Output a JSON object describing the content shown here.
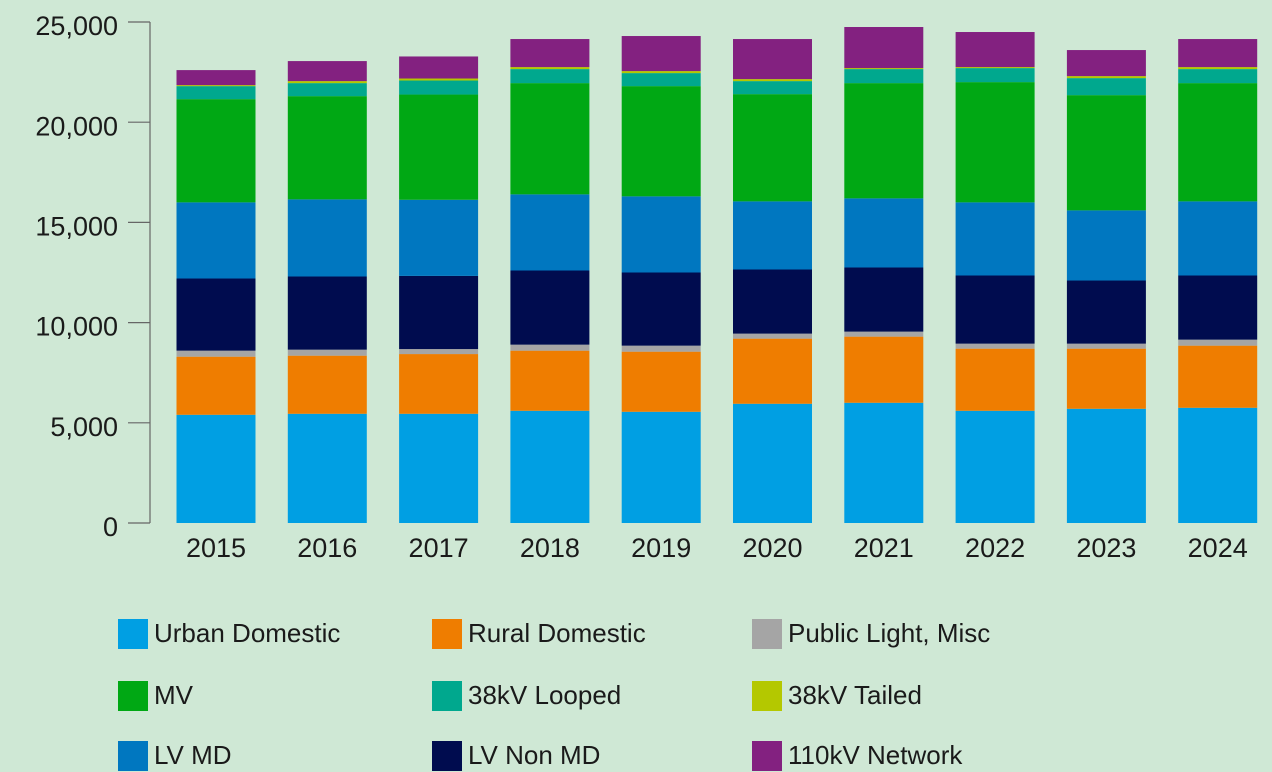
{
  "chart_data": {
    "type": "stacked_bar",
    "categories": [
      "2015",
      "2016",
      "2017",
      "2018",
      "2019",
      "2020",
      "2021",
      "2022",
      "2023",
      "2024"
    ],
    "series": [
      {
        "name": "Urban Domestic",
        "color": "#009fe3",
        "values": [
          5400,
          5450,
          5450,
          5600,
          5550,
          5950,
          6000,
          5600,
          5700,
          5750
        ]
      },
      {
        "name": "Rural Domestic",
        "color": "#ef7d00",
        "values": [
          2900,
          2900,
          2980,
          3000,
          3000,
          3250,
          3300,
          3100,
          3000,
          3100
        ]
      },
      {
        "name": "Public Light, Misc",
        "color": "#a5a5a5",
        "values": [
          300,
          300,
          250,
          300,
          300,
          250,
          250,
          250,
          250,
          300
        ]
      },
      {
        "name": "LV Non MD",
        "color": "#000c4f",
        "values": [
          3600,
          3650,
          3650,
          3700,
          3650,
          3200,
          3200,
          3400,
          3150,
          3200
        ]
      },
      {
        "name": "LV MD",
        "color": "#0077c0",
        "values": [
          3800,
          3850,
          3800,
          3800,
          3800,
          3400,
          3450,
          3650,
          3500,
          3700
        ]
      },
      {
        "name": "MV",
        "color": "#00a814",
        "values": [
          5150,
          5150,
          5250,
          5550,
          5500,
          5350,
          5750,
          6000,
          5750,
          5900
        ]
      },
      {
        "name": "38kV Looped",
        "color": "#00a88e",
        "values": [
          650,
          650,
          700,
          700,
          650,
          650,
          700,
          700,
          850,
          700
        ]
      },
      {
        "name": "38kV Tailed",
        "color": "#b4c800",
        "values": [
          50,
          100,
          100,
          100,
          100,
          100,
          50,
          50,
          100,
          100
        ]
      },
      {
        "name": "110kV Network",
        "color": "#832180",
        "values": [
          750,
          1000,
          1100,
          1400,
          1750,
          2000,
          2050,
          1750,
          1300,
          1400
        ]
      }
    ],
    "ylim": [
      0,
      25000
    ],
    "yticks": [
      0,
      {
        "value": 5000,
        "label": "5,000"
      },
      {
        "value": 10000,
        "label": "10,000"
      },
      {
        "value": 15000,
        "label": "15,000"
      },
      {
        "value": 20000,
        "label": "20,000"
      },
      {
        "value": 25000,
        "label": "25,000"
      }
    ]
  }
}
